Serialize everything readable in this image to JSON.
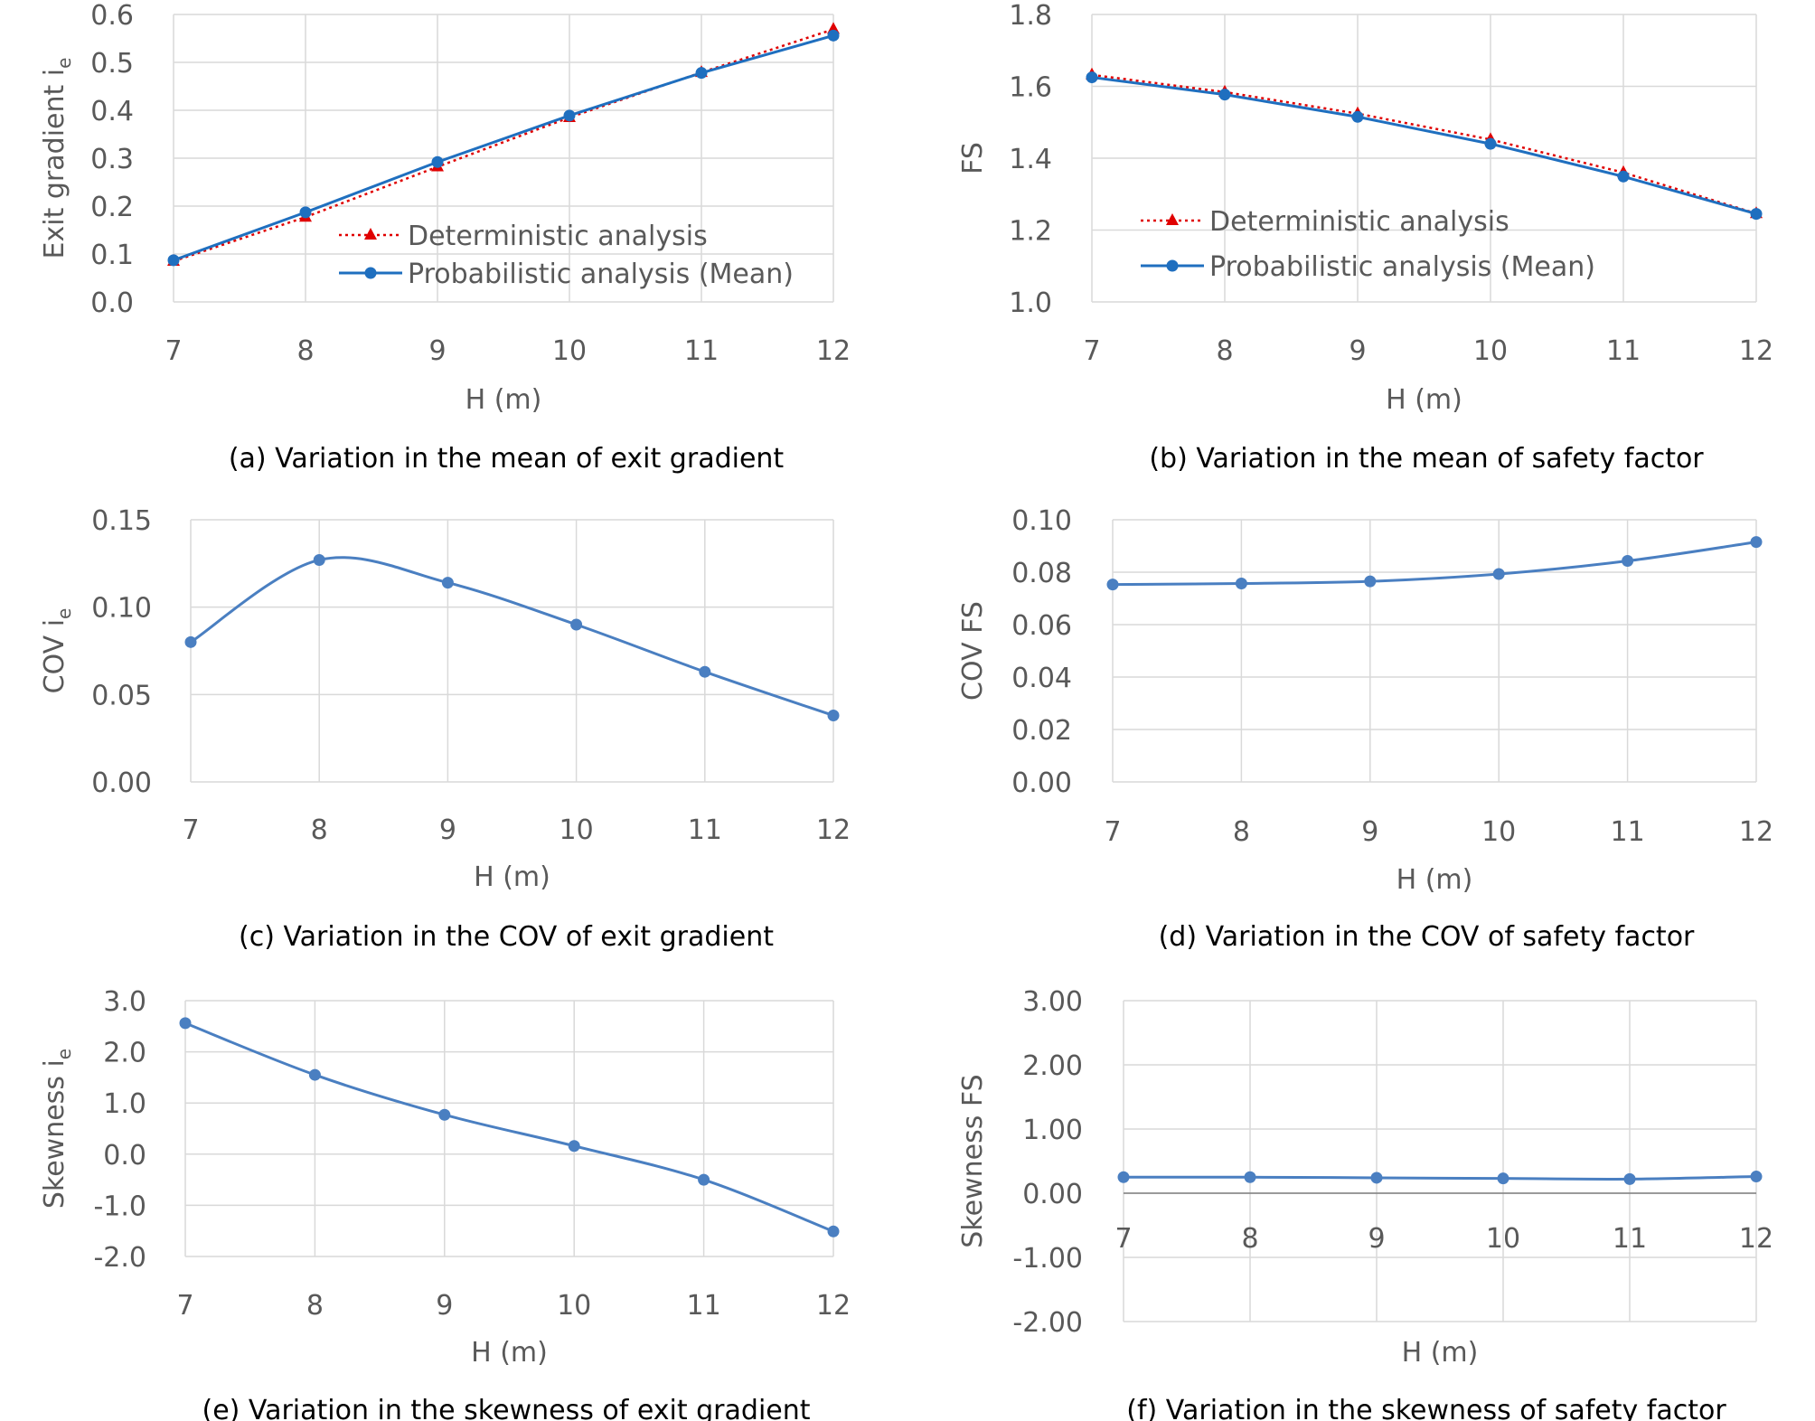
{
  "colors": {
    "grid": "#d9d9d9",
    "tick_text": "#595959",
    "caption_text": "#000000",
    "deterministic": "#e00000",
    "probabilistic": "#1f6fbf",
    "single_series": "#4a7fc1"
  },
  "chart_data": [
    {
      "id": "a",
      "type": "line",
      "caption": "(a) Variation in the mean of exit gradient",
      "xlabel": "H (m)",
      "ylabel": "Exit gradient i",
      "ylabel_sub": "e",
      "xlim": [
        7,
        12
      ],
      "ylim": [
        0.0,
        0.6
      ],
      "x_ticks": [
        "7",
        "8",
        "9",
        "10",
        "11",
        "12"
      ],
      "y_ticks": [
        "0.0",
        "0.1",
        "0.2",
        "0.3",
        "0.4",
        "0.5",
        "0.6"
      ],
      "grid": true,
      "legend_position": "bottom-right",
      "x": [
        7,
        8,
        9,
        10,
        11,
        12
      ],
      "series": [
        {
          "name": "Deterministic analysis",
          "style": "dotted",
          "marker": "triangle",
          "color": "#e00000",
          "values": [
            0.085,
            0.177,
            0.282,
            0.385,
            0.479,
            0.569
          ]
        },
        {
          "name": "Probabilistic analysis (Mean)",
          "style": "solid",
          "marker": "circle",
          "color": "#1f6fbf",
          "values": [
            0.087,
            0.187,
            0.292,
            0.389,
            0.478,
            0.556
          ]
        }
      ]
    },
    {
      "id": "b",
      "type": "line",
      "caption": "(b) Variation in the mean of safety factor",
      "xlabel": "H (m)",
      "ylabel": "FS",
      "ylabel_sub": "",
      "xlim": [
        7,
        12
      ],
      "ylim": [
        1.0,
        1.8
      ],
      "x_ticks": [
        "7",
        "8",
        "9",
        "10",
        "11",
        "12"
      ],
      "y_ticks": [
        "1.0",
        "1.2",
        "1.4",
        "1.6",
        "1.8"
      ],
      "grid": true,
      "legend_position": "bottom-left",
      "x": [
        7,
        8,
        9,
        10,
        11,
        12
      ],
      "series": [
        {
          "name": "Deterministic analysis",
          "style": "dotted",
          "marker": "triangle",
          "color": "#e00000",
          "values": [
            1.632,
            1.584,
            1.524,
            1.452,
            1.36,
            1.246
          ]
        },
        {
          "name": "Probabilistic analysis (Mean)",
          "style": "solid",
          "marker": "circle",
          "color": "#1f6fbf",
          "values": [
            1.625,
            1.577,
            1.515,
            1.44,
            1.349,
            1.245
          ]
        }
      ]
    },
    {
      "id": "c",
      "type": "line",
      "caption": "(c) Variation in the COV of exit gradient",
      "xlabel": "H (m)",
      "ylabel": "COV i",
      "ylabel_sub": "e",
      "xlim": [
        7,
        12
      ],
      "ylim": [
        0.0,
        0.15
      ],
      "x_ticks": [
        "7",
        "8",
        "9",
        "10",
        "11",
        "12"
      ],
      "y_ticks": [
        "0.00",
        "0.05",
        "0.10",
        "0.15"
      ],
      "grid": true,
      "x": [
        7,
        8,
        9,
        10,
        11,
        12
      ],
      "series": [
        {
          "name": "",
          "style": "smooth",
          "marker": "circle",
          "color": "#4a7fc1",
          "values": [
            0.08,
            0.127,
            0.114,
            0.09,
            0.063,
            0.038
          ]
        }
      ]
    },
    {
      "id": "d",
      "type": "line",
      "caption": "(d) Variation in the COV of safety factor",
      "xlabel": "H (m)",
      "ylabel": "COV FS",
      "ylabel_sub": "",
      "xlim": [
        7,
        12
      ],
      "ylim": [
        0.0,
        0.1
      ],
      "x_ticks": [
        "7",
        "8",
        "9",
        "10",
        "11",
        "12"
      ],
      "y_ticks": [
        "0.00",
        "0.02",
        "0.04",
        "0.06",
        "0.08",
        "0.10"
      ],
      "grid": true,
      "x": [
        7,
        8,
        9,
        10,
        11,
        12
      ],
      "series": [
        {
          "name": "",
          "style": "smooth",
          "marker": "circle",
          "color": "#4a7fc1",
          "values": [
            0.0753,
            0.0757,
            0.0765,
            0.0793,
            0.0843,
            0.0915
          ]
        }
      ]
    },
    {
      "id": "e",
      "type": "line",
      "caption": "(e) Variation in the skewness of exit gradient",
      "xlabel": "H (m)",
      "ylabel": "Skewness i",
      "ylabel_sub": "e",
      "xlim": [
        7,
        12
      ],
      "ylim": [
        -2.0,
        3.0
      ],
      "x_ticks": [
        "7",
        "8",
        "9",
        "10",
        "11",
        "12"
      ],
      "y_ticks": [
        "-2.0",
        "-1.0",
        "0.0",
        "1.0",
        "2.0",
        "3.0"
      ],
      "grid": true,
      "x": [
        7,
        8,
        9,
        10,
        11,
        12
      ],
      "series": [
        {
          "name": "",
          "style": "smooth",
          "marker": "circle",
          "color": "#4a7fc1",
          "values": [
            2.56,
            1.55,
            0.77,
            0.16,
            -0.5,
            -1.51
          ]
        }
      ]
    },
    {
      "id": "f",
      "type": "line",
      "caption": "(f) Variation in the skewness of safety factor",
      "xlabel": "H (m)",
      "ylabel": "Skewness FS",
      "ylabel_sub": "",
      "xlim": [
        7,
        12
      ],
      "ylim": [
        -2.0,
        3.0
      ],
      "x_ticks": [
        "7",
        "8",
        "9",
        "10",
        "11",
        "12"
      ],
      "y_ticks": [
        "-2.00",
        "-1.00",
        "0.00",
        "1.00",
        "2.00",
        "3.00"
      ],
      "grid": true,
      "x_tick_labels_at_zero": true,
      "x": [
        7,
        8,
        9,
        10,
        11,
        12
      ],
      "series": [
        {
          "name": "",
          "style": "smooth",
          "marker": "circle",
          "color": "#4a7fc1",
          "values": [
            0.25,
            0.25,
            0.24,
            0.23,
            0.22,
            0.26
          ]
        }
      ]
    }
  ]
}
